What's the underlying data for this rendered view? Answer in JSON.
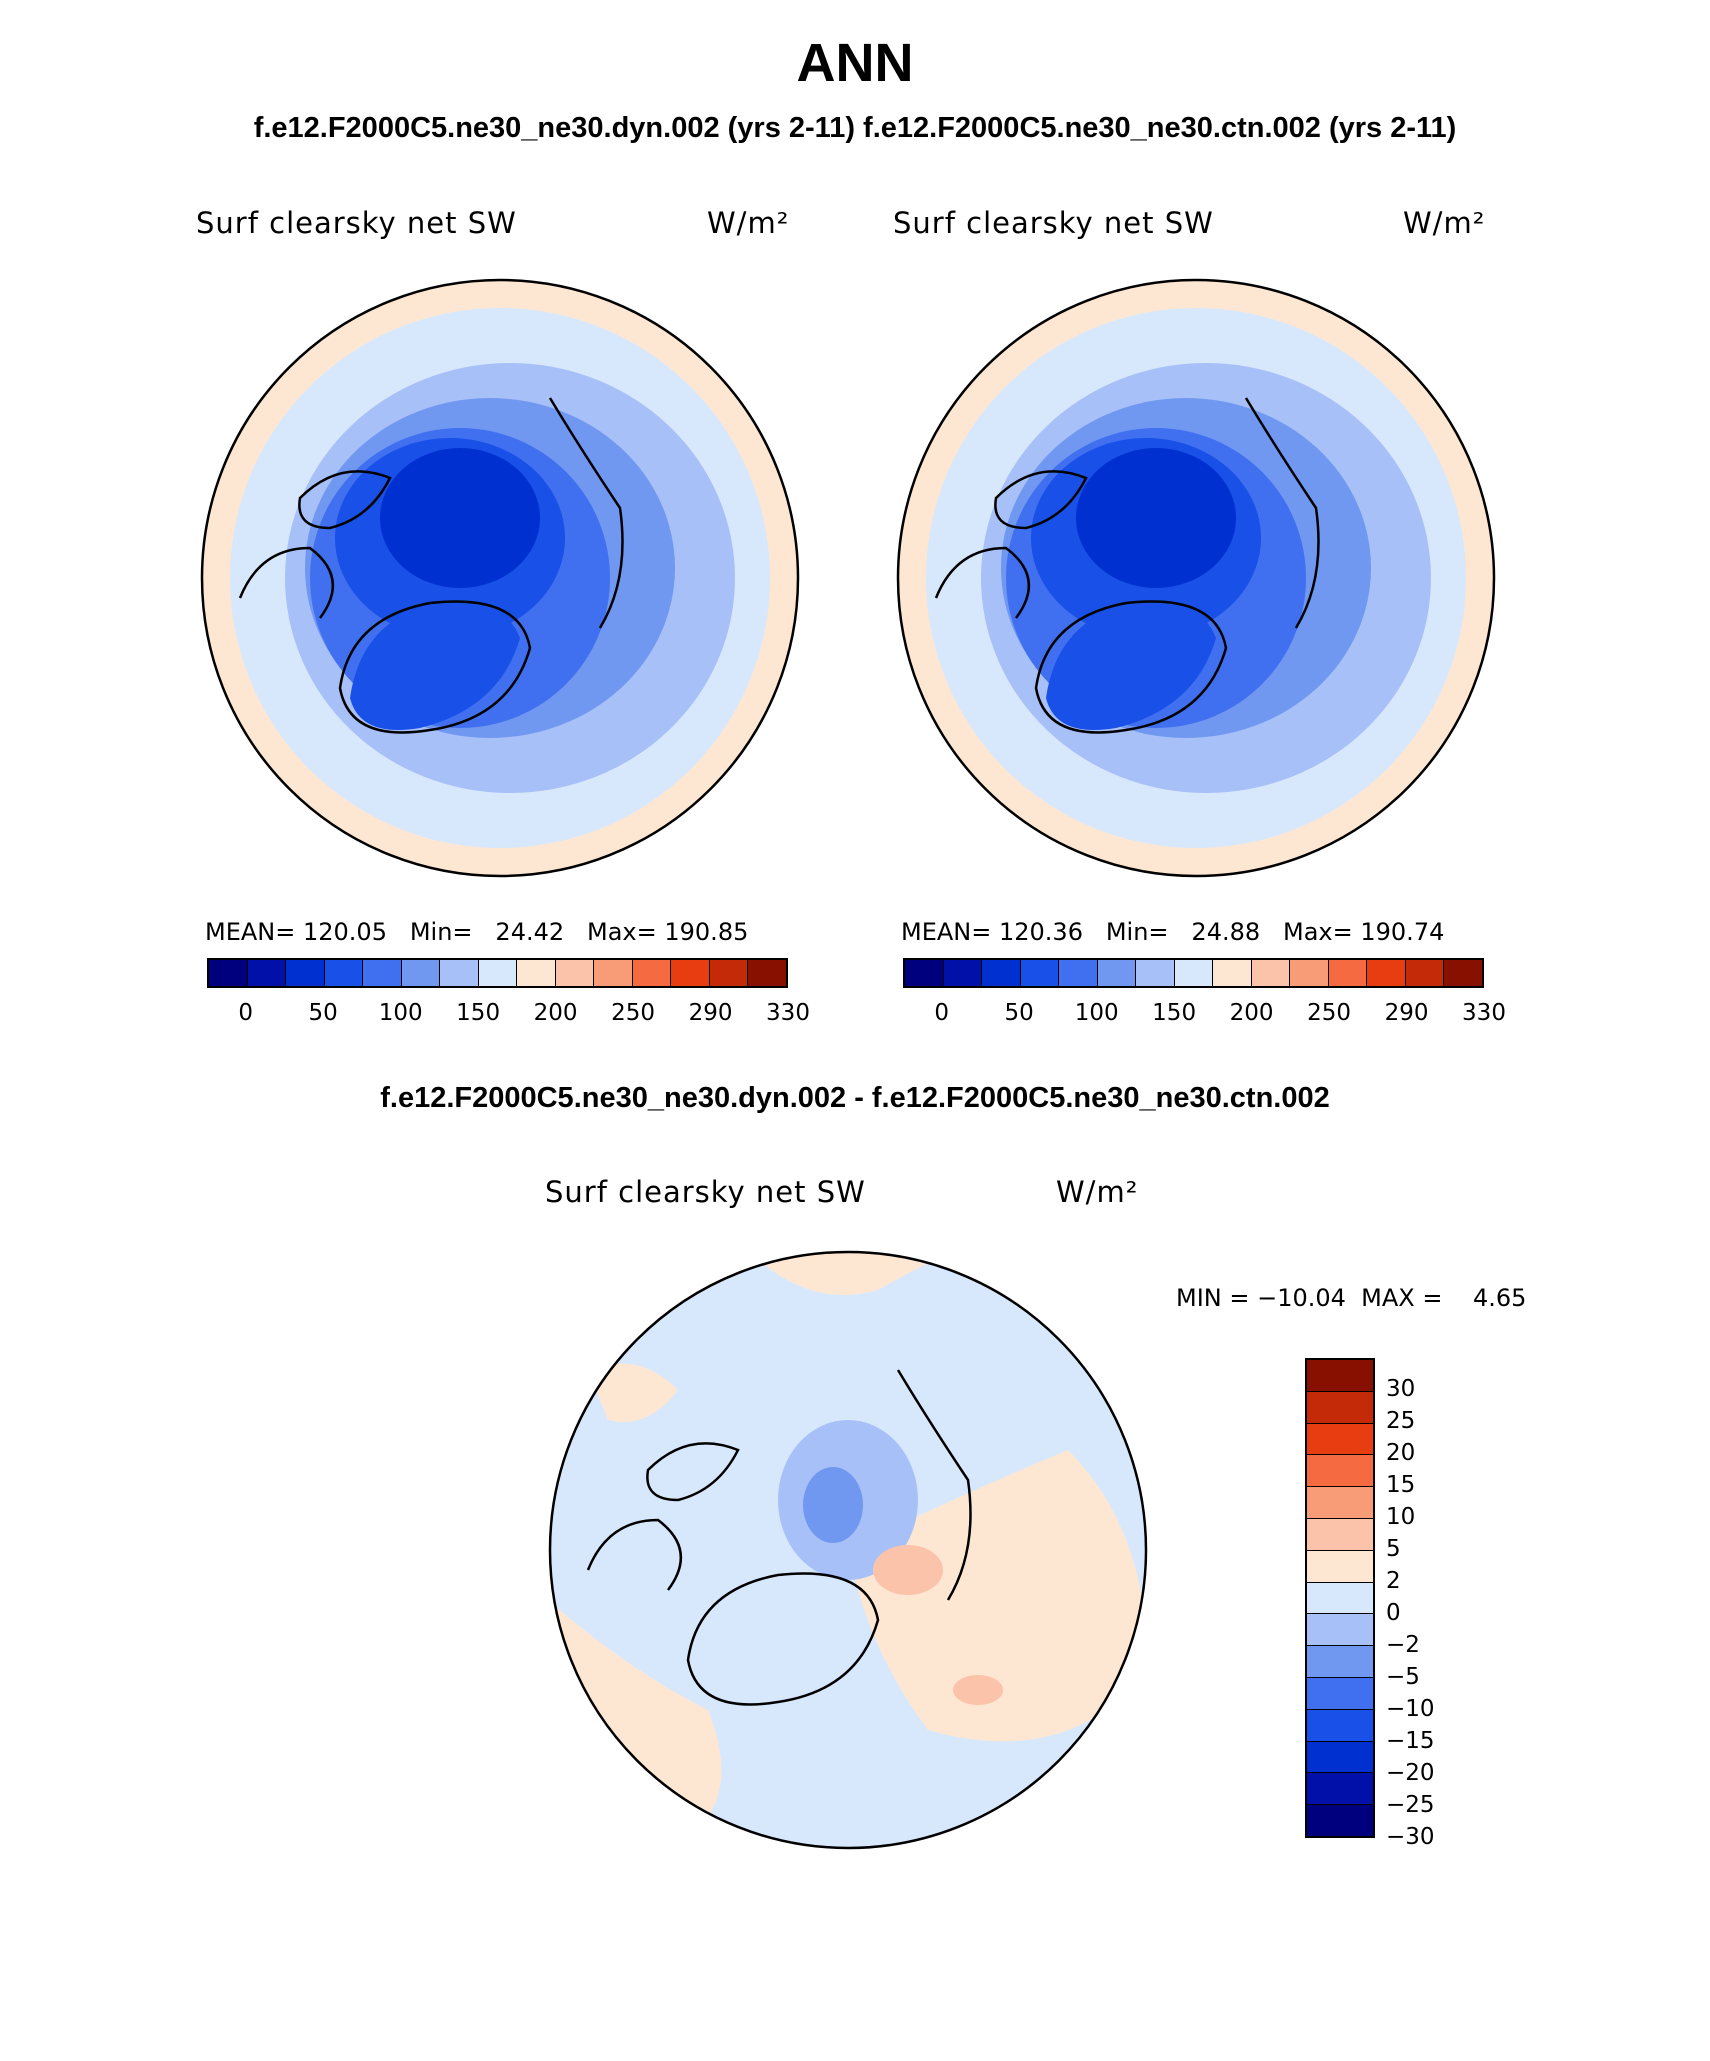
{
  "title": "ANN",
  "subtitle_top": "f.e12.F2000C5.ne30_ne30.dyn.002 (yrs 2-11)  f.e12.F2000C5.ne30_ne30.ctn.002 (yrs 2-11)",
  "subtitle_diff": "f.e12.F2000C5.ne30_ne30.dyn.002 - f.e12.F2000C5.ne30_ne30.ctn.002",
  "panels": [
    {
      "variable": "Surf clearsky net SW",
      "units": "W/m²",
      "stats": "MEAN= 120.05   Min=   24.42   Max= 190.85"
    },
    {
      "variable": "Surf clearsky net SW",
      "units": "W/m²",
      "stats": "MEAN= 120.36   Min=   24.88   Max= 190.74"
    }
  ],
  "diff_panel": {
    "variable": "Surf clearsky net SW",
    "units": "W/m²",
    "stats": "MIN = −10.04  MAX =    4.65"
  },
  "colorbar_abs": {
    "colors": [
      "#00007f",
      "#0010a8",
      "#0030d0",
      "#1850e8",
      "#4070f0",
      "#7098f0",
      "#a8c0f8",
      "#d8e8fc",
      "#fde7d3",
      "#fbc4aa",
      "#f89c78",
      "#f56a40",
      "#e83d10",
      "#c42a08",
      "#881000"
    ],
    "tick_labels": [
      "0",
      "50",
      "100",
      "150",
      "200",
      "250",
      "290",
      "330"
    ]
  },
  "colorbar_diff": {
    "colors": [
      "#881000",
      "#c42a08",
      "#e83d10",
      "#f56a40",
      "#f89c78",
      "#fbc4aa",
      "#fde7d3",
      "#d8e8fc",
      "#a8c0f8",
      "#7098f0",
      "#4070f0",
      "#1850e8",
      "#0030d0",
      "#0010a8",
      "#00007f"
    ],
    "tick_labels": [
      "30",
      "25",
      "20",
      "15",
      "10",
      "5",
      "2",
      "0",
      "−2",
      "−5",
      "−10",
      "−15",
      "−20",
      "−25",
      "−30"
    ]
  }
}
